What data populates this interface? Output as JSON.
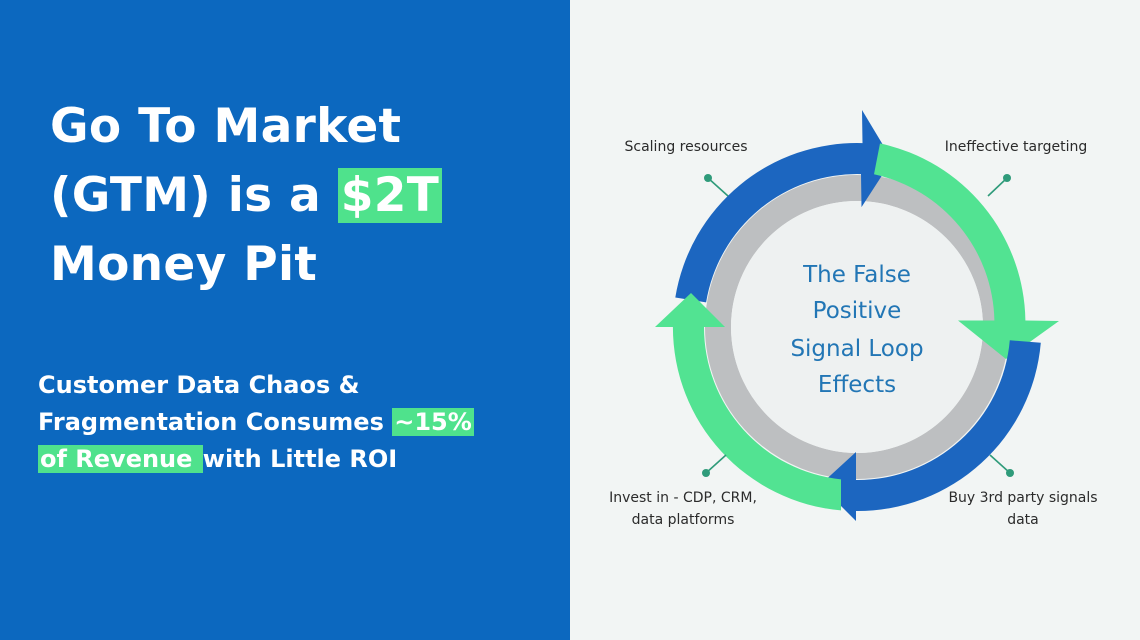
{
  "headline": {
    "line1": "Go To Market",
    "line2_pre": "(GTM) is a ",
    "line2_highlight": "$2T",
    "line3": "Money Pit"
  },
  "subhead": {
    "line1": "Customer Data Chaos &",
    "line2_pre": "Fragmentation Consumes ",
    "line2_highlight": "~15%",
    "line3_highlight": "of Revenue ",
    "line3_post": "with Little ROI"
  },
  "diagram": {
    "center_lines": [
      "The False",
      "Positive",
      "Signal Loop",
      "Effects"
    ],
    "labels": {
      "top_left": "Scaling resources",
      "top_right": "Ineffective targeting",
      "bottom_right_line1": "Buy 3rd party signals",
      "bottom_right_line2": "data",
      "bottom_left_line1": "Invest in - CDP, CRM,",
      "bottom_left_line2": "data platforms"
    },
    "colors": {
      "blue": "#1c66c0",
      "green": "#52e392",
      "ring": "#bdbfc1",
      "center_fill": "#eef1f1",
      "connector": "#2f9b7a"
    }
  }
}
